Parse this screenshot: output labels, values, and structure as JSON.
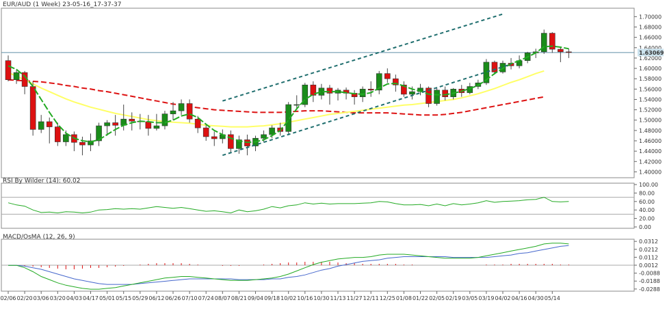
{
  "chart_data": [
    {
      "type": "candlestick",
      "title": "EUR/AUD (1 Week) 23-05-16_17-37-37",
      "current_price": "1.63069",
      "yticks": [
        "1.40000",
        "1.42000",
        "1.44000",
        "1.46000",
        "1.48000",
        "1.50000",
        "1.52000",
        "1.54000",
        "1.56000",
        "1.58000",
        "1.60000",
        "1.62000",
        "1.64000",
        "1.66000",
        "1.68000",
        "1.70000"
      ],
      "ylim": [
        1.39,
        1.715
      ],
      "candles": [
        [
          1.615,
          1.578,
          1.625,
          1.575
        ],
        [
          1.578,
          1.592,
          1.598,
          1.57
        ],
        [
          1.592,
          1.565,
          1.595,
          1.55
        ],
        [
          1.565,
          1.482,
          1.575,
          1.47
        ],
        [
          1.482,
          1.497,
          1.51,
          1.475
        ],
        [
          1.497,
          1.487,
          1.505,
          1.455
        ],
        [
          1.487,
          1.458,
          1.495,
          1.45
        ],
        [
          1.458,
          1.472,
          1.48,
          1.45
        ],
        [
          1.472,
          1.457,
          1.478,
          1.44
        ],
        [
          1.457,
          1.452,
          1.468,
          1.432
        ],
        [
          1.452,
          1.46,
          1.474,
          1.44
        ],
        [
          1.46,
          1.489,
          1.495,
          1.45
        ],
        [
          1.489,
          1.495,
          1.5,
          1.47
        ],
        [
          1.495,
          1.49,
          1.51,
          1.47
        ],
        [
          1.49,
          1.502,
          1.53,
          1.48
        ],
        [
          1.502,
          1.498,
          1.515,
          1.48
        ],
        [
          1.498,
          1.497,
          1.512,
          1.482
        ],
        [
          1.497,
          1.484,
          1.51,
          1.47
        ],
        [
          1.484,
          1.489,
          1.512,
          1.48
        ],
        [
          1.489,
          1.512,
          1.518,
          1.482
        ],
        [
          1.512,
          1.518,
          1.535,
          1.5
        ],
        [
          1.518,
          1.532,
          1.54,
          1.51
        ],
        [
          1.532,
          1.502,
          1.54,
          1.495
        ],
        [
          1.502,
          1.485,
          1.508,
          1.475
        ],
        [
          1.485,
          1.468,
          1.49,
          1.46
        ],
        [
          1.468,
          1.464,
          1.478,
          1.45
        ],
        [
          1.464,
          1.472,
          1.482,
          1.455
        ],
        [
          1.472,
          1.445,
          1.48,
          1.438
        ],
        [
          1.445,
          1.462,
          1.47,
          1.435
        ],
        [
          1.462,
          1.45,
          1.472,
          1.432
        ],
        [
          1.45,
          1.465,
          1.47,
          1.44
        ],
        [
          1.465,
          1.472,
          1.48,
          1.458
        ],
        [
          1.472,
          1.485,
          1.49,
          1.465
        ],
        [
          1.485,
          1.478,
          1.495,
          1.47
        ],
        [
          1.478,
          1.53,
          1.535,
          1.472
        ],
        [
          1.53,
          1.53,
          1.548,
          1.52
        ],
        [
          1.53,
          1.568,
          1.572,
          1.525
        ],
        [
          1.568,
          1.548,
          1.575,
          1.535
        ],
        [
          1.548,
          1.562,
          1.57,
          1.54
        ],
        [
          1.562,
          1.552,
          1.568,
          1.53
        ],
        [
          1.552,
          1.558,
          1.562,
          1.538
        ],
        [
          1.558,
          1.552,
          1.563,
          1.54
        ],
        [
          1.552,
          1.545,
          1.558,
          1.53
        ],
        [
          1.545,
          1.56,
          1.565,
          1.535
        ],
        [
          1.56,
          1.558,
          1.575,
          1.545
        ],
        [
          1.558,
          1.59,
          1.595,
          1.55
        ],
        [
          1.59,
          1.58,
          1.6,
          1.572
        ],
        [
          1.58,
          1.568,
          1.588,
          1.555
        ],
        [
          1.568,
          1.55,
          1.575,
          1.545
        ],
        [
          1.55,
          1.555,
          1.565,
          1.54
        ],
        [
          1.555,
          1.562,
          1.57,
          1.548
        ],
        [
          1.562,
          1.532,
          1.565,
          1.525
        ],
        [
          1.532,
          1.558,
          1.562,
          1.528
        ],
        [
          1.558,
          1.545,
          1.565,
          1.538
        ],
        [
          1.545,
          1.56,
          1.562,
          1.54
        ],
        [
          1.56,
          1.553,
          1.568,
          1.545
        ],
        [
          1.553,
          1.565,
          1.572,
          1.55
        ],
        [
          1.565,
          1.572,
          1.578,
          1.56
        ],
        [
          1.572,
          1.612,
          1.618,
          1.568
        ],
        [
          1.612,
          1.593,
          1.615,
          1.588
        ],
        [
          1.593,
          1.61,
          1.615,
          1.59
        ],
        [
          1.61,
          1.605,
          1.62,
          1.598
        ],
        [
          1.605,
          1.615,
          1.625,
          1.6
        ],
        [
          1.615,
          1.63,
          1.632,
          1.61
        ],
        [
          1.63,
          1.632,
          1.638,
          1.62
        ],
        [
          1.632,
          1.668,
          1.675,
          1.628
        ],
        [
          1.668,
          1.637,
          1.67,
          1.63
        ],
        [
          1.637,
          1.632,
          1.642,
          1.612
        ],
        [
          1.632,
          1.631,
          1.638,
          1.62
        ]
      ],
      "channel_top": [
        [
          1.537,
          26
        ],
        [
          1.705,
          60
        ]
      ],
      "channel_bottom": [
        [
          1.432,
          26
        ],
        [
          1.608,
          61
        ]
      ],
      "sma_red": [
        1.578,
        1.577,
        1.576,
        1.575,
        1.574,
        1.572,
        1.57,
        1.567,
        1.565,
        1.562,
        1.56,
        1.557,
        1.555,
        1.552,
        1.549,
        1.546,
        1.543,
        1.54,
        1.537,
        1.534,
        1.531,
        1.529,
        1.526,
        1.524,
        1.522,
        1.52,
        1.519,
        1.518,
        1.517,
        1.516,
        1.515,
        1.515,
        1.515,
        1.515,
        1.516,
        1.517,
        1.518,
        1.518,
        1.518,
        1.517,
        1.516,
        1.515,
        1.514,
        1.514,
        1.514,
        1.514,
        1.514,
        1.513,
        1.512,
        1.511,
        1.51,
        1.51,
        1.51,
        1.511,
        1.513,
        1.515,
        1.518,
        1.521,
        1.524,
        1.527,
        1.53,
        1.533,
        1.536,
        1.539,
        1.542,
        1.545
      ],
      "sma_yellow": [
        1.592,
        1.585,
        1.578,
        1.57,
        1.562,
        1.555,
        1.548,
        1.541,
        1.535,
        1.53,
        1.525,
        1.521,
        1.517,
        1.513,
        1.51,
        1.507,
        1.504,
        1.501,
        1.499,
        1.497,
        1.496,
        1.495,
        1.494,
        1.492,
        1.49,
        1.489,
        1.488,
        1.487,
        1.487,
        1.487,
        1.488,
        1.489,
        1.491,
        1.493,
        1.496,
        1.499,
        1.502,
        1.505,
        1.508,
        1.511,
        1.513,
        1.515,
        1.517,
        1.519,
        1.521,
        1.523,
        1.525,
        1.527,
        1.529,
        1.53,
        1.532,
        1.534,
        1.536,
        1.538,
        1.54,
        1.543,
        1.547,
        1.551,
        1.556,
        1.561,
        1.567,
        1.573,
        1.578,
        1.584,
        1.59,
        1.595
      ],
      "sma_green": [
        1.605,
        1.598,
        1.585,
        1.565,
        1.54,
        1.515,
        1.492,
        1.475,
        1.465,
        1.46,
        1.458,
        1.462,
        1.472,
        1.482,
        1.49,
        1.495,
        1.498,
        1.497,
        1.495,
        1.495,
        1.5,
        1.508,
        1.512,
        1.505,
        1.492,
        1.48,
        1.472,
        1.465,
        1.46,
        1.457,
        1.458,
        1.462,
        1.47,
        1.48,
        1.5,
        1.522,
        1.54,
        1.55,
        1.555,
        1.555,
        1.555,
        1.553,
        1.551,
        1.55,
        1.553,
        1.562,
        1.57,
        1.571,
        1.566,
        1.56,
        1.556,
        1.55,
        1.549,
        1.549,
        1.552,
        1.556,
        1.561,
        1.567,
        1.578,
        1.59,
        1.6,
        1.609,
        1.615,
        1.622,
        1.63,
        1.642,
        1.643,
        1.641,
        1.638
      ]
    },
    {
      "type": "line",
      "title": "RSI By Wilder (14): 60.02",
      "yticks": [
        "0.00",
        "20.00",
        "40.00",
        "60.00",
        "80.00",
        "100.00"
      ],
      "ylim": [
        0,
        100
      ],
      "levels": [
        30,
        70
      ],
      "values": [
        57,
        52,
        49,
        40,
        34,
        35,
        33,
        36,
        35,
        33,
        35,
        40,
        41,
        43,
        42,
        43,
        42,
        45,
        48,
        46,
        44,
        46,
        43,
        40,
        37,
        38,
        36,
        33,
        40,
        36,
        38,
        42,
        48,
        45,
        50,
        52,
        57,
        54,
        56,
        54,
        55,
        55,
        55,
        56,
        57,
        60,
        59,
        55,
        52,
        52,
        53,
        50,
        54,
        50,
        55,
        52,
        54,
        57,
        62,
        58,
        60,
        61,
        62,
        64,
        65,
        70,
        60,
        59,
        60
      ]
    },
    {
      "type": "line",
      "title": "MACD/OsMA (12, 26, 9)",
      "yticks": [
        "-0.0288",
        "-0.0188",
        "-0.0088",
        "0.0012",
        "0.0112",
        "0.0212",
        "0.0312"
      ],
      "ylim": [
        -0.0298,
        0.0322
      ],
      "macd": [
        0.001,
        0.001,
        -0.002,
        -0.007,
        -0.013,
        -0.017,
        -0.021,
        -0.024,
        -0.026,
        -0.028,
        -0.029,
        -0.029,
        -0.028,
        -0.027,
        -0.025,
        -0.023,
        -0.021,
        -0.019,
        -0.017,
        -0.015,
        -0.014,
        -0.013,
        -0.013,
        -0.014,
        -0.015,
        -0.016,
        -0.017,
        -0.018,
        -0.018,
        -0.018,
        -0.017,
        -0.016,
        -0.015,
        -0.013,
        -0.01,
        -0.006,
        -0.002,
        0.002,
        0.005,
        0.007,
        0.009,
        0.01,
        0.011,
        0.011,
        0.012,
        0.014,
        0.015,
        0.015,
        0.015,
        0.014,
        0.013,
        0.012,
        0.011,
        0.01,
        0.01,
        0.01,
        0.01,
        0.011,
        0.013,
        0.015,
        0.017,
        0.019,
        0.021,
        0.023,
        0.025,
        0.028,
        0.029,
        0.029,
        0.028
      ],
      "signal": [
        0.001,
        0.001,
        0.0,
        -0.002,
        -0.004,
        -0.007,
        -0.01,
        -0.013,
        -0.016,
        -0.018,
        -0.02,
        -0.022,
        -0.023,
        -0.023,
        -0.023,
        -0.023,
        -0.022,
        -0.021,
        -0.02,
        -0.019,
        -0.018,
        -0.017,
        -0.016,
        -0.016,
        -0.016,
        -0.016,
        -0.016,
        -0.016,
        -0.017,
        -0.017,
        -0.017,
        -0.017,
        -0.016,
        -0.016,
        -0.014,
        -0.013,
        -0.011,
        -0.008,
        -0.005,
        -0.003,
        0.0,
        0.002,
        0.004,
        0.006,
        0.007,
        0.008,
        0.01,
        0.011,
        0.012,
        0.012,
        0.012,
        0.012,
        0.012,
        0.012,
        0.011,
        0.011,
        0.011,
        0.011,
        0.011,
        0.012,
        0.013,
        0.014,
        0.016,
        0.017,
        0.019,
        0.021,
        0.023,
        0.025,
        0.026
      ],
      "histogram": [
        0.0,
        0.0,
        -0.001,
        -0.002,
        -0.003,
        -0.004,
        -0.005,
        -0.006,
        -0.006,
        -0.005,
        -0.004,
        -0.004,
        -0.003,
        -0.002,
        -0.001,
        0.0,
        0.001,
        0.002,
        0.003,
        0.003,
        0.003,
        0.003,
        0.002,
        0.001,
        0.0,
        0.0,
        -0.001,
        -0.001,
        -0.001,
        0.0,
        0.0,
        0.001,
        0.002,
        0.003,
        0.004,
        0.004,
        0.005,
        0.005,
        0.005,
        0.005,
        0.004,
        0.003,
        0.003,
        0.002,
        0.002,
        0.002,
        0.002,
        0.002,
        0.001,
        0.001,
        0.0,
        0.0,
        0.0,
        0.0,
        0.0,
        0.0,
        0.0,
        0.0,
        0.001,
        0.001,
        0.001,
        0.002,
        0.002,
        0.002,
        0.002,
        0.002,
        0.002,
        0.001,
        0.001
      ]
    }
  ],
  "x_labels": [
    "02/06",
    "02/20",
    "03/06",
    "03/20",
    "04/03",
    "04/17",
    "05/01",
    "05/15",
    "05/29",
    "06/12",
    "06/26",
    "07/10",
    "07/24",
    "08/07",
    "08/21",
    "09/04",
    "09/18",
    "10/02",
    "10/16",
    "10/30",
    "11/13",
    "11/27",
    "12/11",
    "12/25",
    "01/08",
    "01/22",
    "02/05",
    "02/19",
    "03/05",
    "03/19",
    "04/02",
    "04/16",
    "04/30",
    "05/14"
  ],
  "colors": {
    "bull": "#1a8c1a",
    "bear": "#dd1111",
    "channel": "#1f6e6e",
    "sma_red": "#dd1111",
    "sma_yellow": "#ffff66",
    "sma_green": "#22aa22",
    "rsi": "#22aa22",
    "macd": "#22aa22",
    "signal": "#4466cc",
    "histogram": "#dd1111",
    "price_line": "#5f8fa8",
    "price_tag": "#cce3ee",
    "grid_line": "#aaaaaa"
  }
}
